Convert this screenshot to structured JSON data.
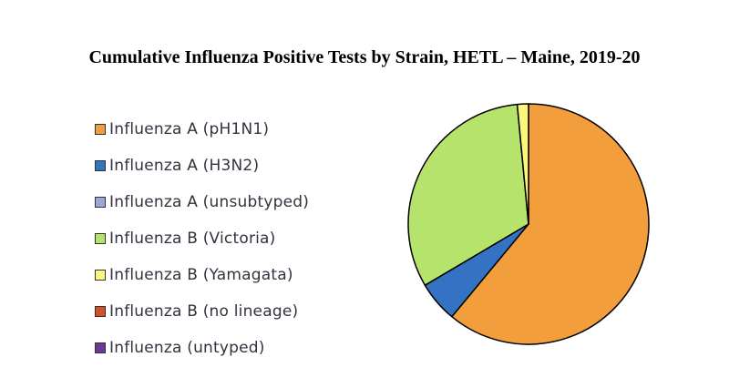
{
  "chart_data": {
    "type": "pie",
    "title": "Cumulative Influenza Positive Tests by Strain, HETL – Maine, 2019-20",
    "legend_position": "left",
    "series": [
      {
        "name": "Influenza A (pH1N1)",
        "value": 61.0,
        "color": "#F29E3C"
      },
      {
        "name": "Influenza A (H3N2)",
        "value": 5.5,
        "color": "#3472C4"
      },
      {
        "name": "Influenza A (unsubtyped)",
        "value": 0.0,
        "color": "#9AA7D9"
      },
      {
        "name": "Influenza B (Victoria)",
        "value": 32.0,
        "color": "#B6E36B"
      },
      {
        "name": "Influenza B (Yamagata)",
        "value": 1.5,
        "color": "#FAF77A"
      },
      {
        "name": "Influenza B (no lineage)",
        "value": 0.0,
        "color": "#D3502E"
      },
      {
        "name": "Influenza (untyped)",
        "value": 0.0,
        "color": "#6A3A9A"
      }
    ]
  }
}
